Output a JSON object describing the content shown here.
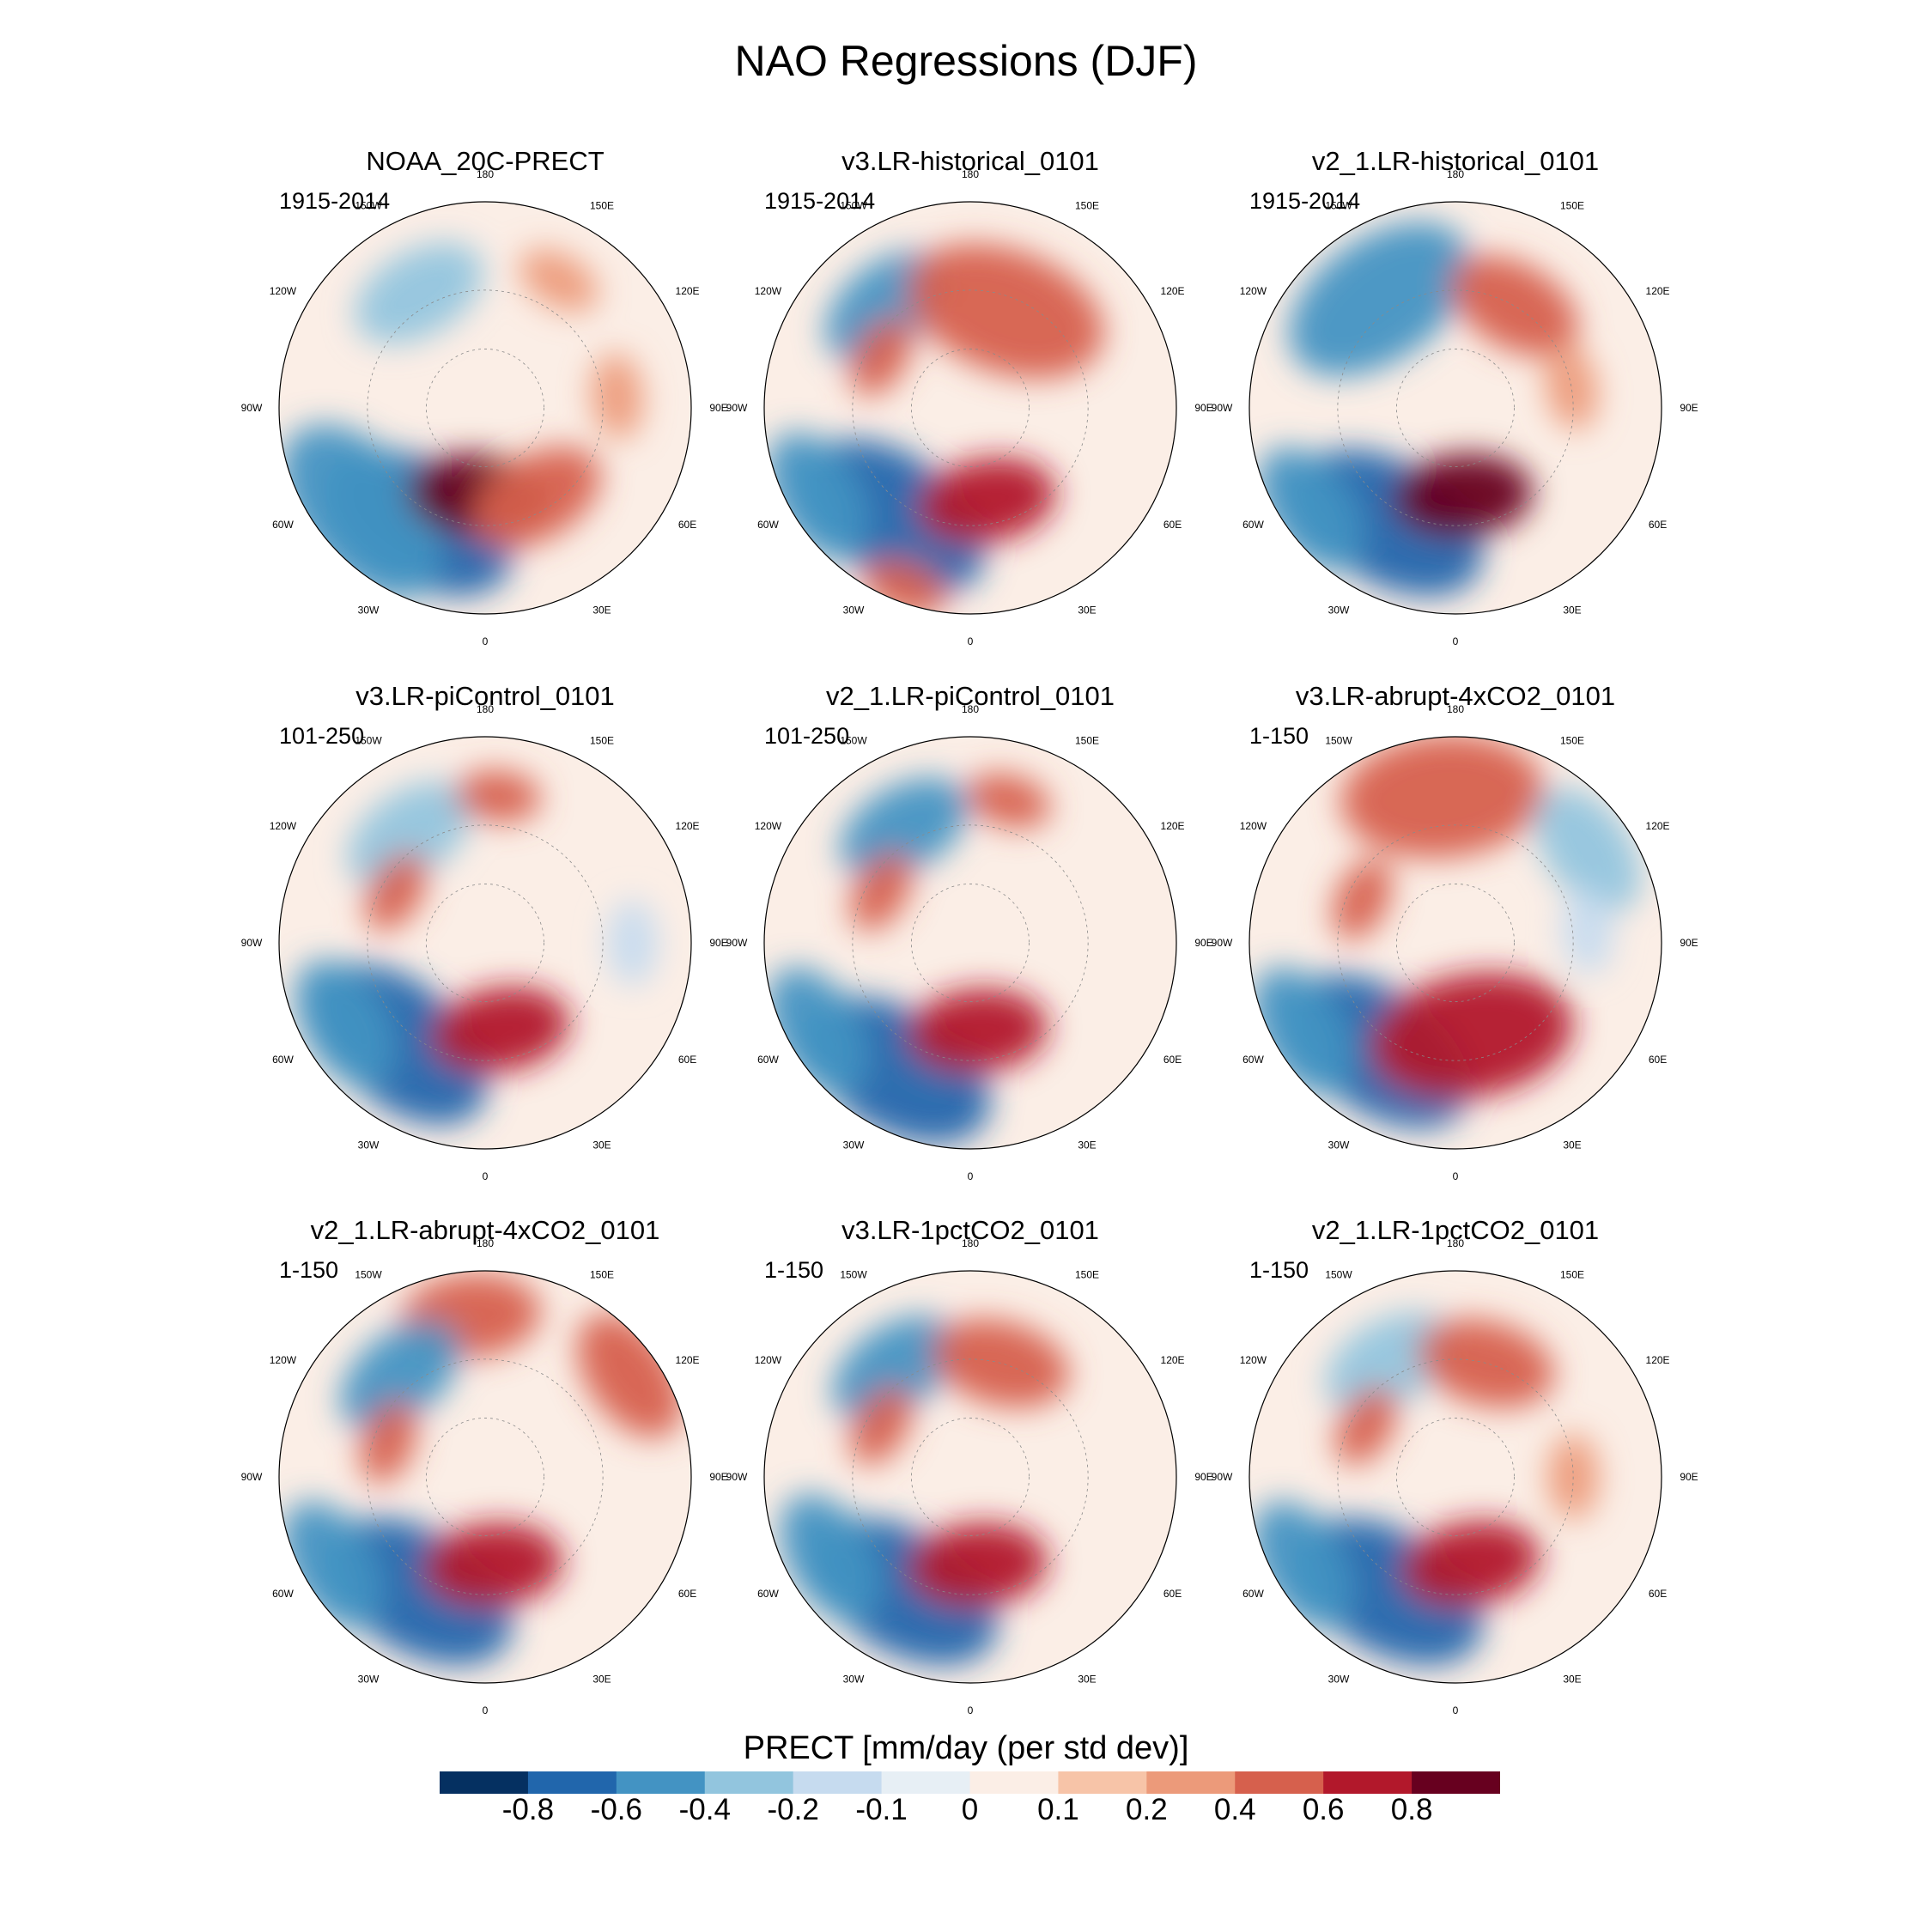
{
  "figure": {
    "title": "NAO Regressions (DJF)"
  },
  "chart_data": {
    "type": "heatmap",
    "projection": "north-polar-stereographic",
    "variable": "PRECT",
    "units_label": "PRECT [mm/day (per std dev)]",
    "longitude_labels": [
      "180",
      "150E",
      "120E",
      "90E",
      "60E",
      "30E",
      "0",
      "30W",
      "60W",
      "90W",
      "120W",
      "150W"
    ],
    "colorbar": {
      "colors": [
        "#053061",
        "#2166ac",
        "#4393c3",
        "#92c5de",
        "#c6dbef",
        "#e7eff5",
        "#fbeee6",
        "#f7c4a8",
        "#ec9a7a",
        "#d6604d",
        "#b2182b",
        "#67001f"
      ],
      "tick_labels": [
        "-0.8",
        "-0.6",
        "-0.4",
        "-0.2",
        "-0.1",
        "0",
        "0.1",
        "0.2",
        "0.4",
        "0.6",
        "0.8"
      ],
      "tick_values": [
        -0.8,
        -0.6,
        -0.4,
        -0.2,
        -0.1,
        0,
        0.1,
        0.2,
        0.4,
        0.6,
        0.8
      ]
    },
    "panels": [
      {
        "title": "NOAA_20C-PRECT",
        "period": "1915-2014",
        "features": [
          {
            "lon": -30,
            "lat": 45,
            "value": -0.8,
            "extent": "large"
          },
          {
            "lon": -50,
            "lat": 35,
            "value": -0.6,
            "extent": "large"
          },
          {
            "lon": -5,
            "lat": 60,
            "value": 0.8,
            "extent": "medium"
          },
          {
            "lon": 30,
            "lat": 55,
            "value": 0.4,
            "extent": "medium"
          },
          {
            "lon": -150,
            "lat": 45,
            "value": -0.4,
            "extent": "medium"
          },
          {
            "lon": 150,
            "lat": 40,
            "value": 0.2,
            "extent": "small"
          },
          {
            "lon": 95,
            "lat": 45,
            "value": 0.2,
            "extent": "small"
          }
        ]
      },
      {
        "title": "v3.LR-historical_0101",
        "period": "1915-2014",
        "features": [
          {
            "lon": -35,
            "lat": 45,
            "value": -0.8,
            "extent": "large"
          },
          {
            "lon": -60,
            "lat": 30,
            "value": -0.6,
            "extent": "medium"
          },
          {
            "lon": 10,
            "lat": 58,
            "value": 0.6,
            "extent": "medium"
          },
          {
            "lon": -140,
            "lat": 45,
            "value": -0.6,
            "extent": "medium"
          },
          {
            "lon": 160,
            "lat": 55,
            "value": 0.4,
            "extent": "large"
          },
          {
            "lon": -120,
            "lat": 55,
            "value": 0.4,
            "extent": "small"
          },
          {
            "lon": -20,
            "lat": 25,
            "value": 0.4,
            "extent": "small"
          }
        ]
      },
      {
        "title": "v2_1.LR-historical_0101",
        "period": "1915-2014",
        "features": [
          {
            "lon": -30,
            "lat": 45,
            "value": -0.8,
            "extent": "large"
          },
          {
            "lon": -55,
            "lat": 30,
            "value": -0.6,
            "extent": "medium"
          },
          {
            "lon": 5,
            "lat": 60,
            "value": 0.8,
            "extent": "medium"
          },
          {
            "lon": -145,
            "lat": 45,
            "value": -0.6,
            "extent": "large"
          },
          {
            "lon": 150,
            "lat": 50,
            "value": 0.4,
            "extent": "medium"
          },
          {
            "lon": 100,
            "lat": 50,
            "value": 0.2,
            "extent": "small"
          }
        ]
      },
      {
        "title": "v3.LR-piControl_0101",
        "period": "101-250",
        "features": [
          {
            "lon": -40,
            "lat": 45,
            "value": -0.8,
            "extent": "large"
          },
          {
            "lon": -60,
            "lat": 35,
            "value": -0.6,
            "extent": "medium"
          },
          {
            "lon": 10,
            "lat": 60,
            "value": 0.6,
            "extent": "medium"
          },
          {
            "lon": -145,
            "lat": 45,
            "value": -0.4,
            "extent": "medium"
          },
          {
            "lon": 175,
            "lat": 40,
            "value": 0.4,
            "extent": "small"
          },
          {
            "lon": -120,
            "lat": 55,
            "value": 0.4,
            "extent": "small"
          },
          {
            "lon": 90,
            "lat": 40,
            "value": -0.2,
            "extent": "small"
          }
        ]
      },
      {
        "title": "v2_1.LR-piControl_0101",
        "period": "101-250",
        "features": [
          {
            "lon": -30,
            "lat": 40,
            "value": -0.8,
            "extent": "large"
          },
          {
            "lon": -60,
            "lat": 30,
            "value": -0.6,
            "extent": "medium"
          },
          {
            "lon": 5,
            "lat": 60,
            "value": 0.6,
            "extent": "medium"
          },
          {
            "lon": -150,
            "lat": 45,
            "value": -0.6,
            "extent": "medium"
          },
          {
            "lon": 165,
            "lat": 40,
            "value": 0.4,
            "extent": "small"
          },
          {
            "lon": -120,
            "lat": 55,
            "value": 0.4,
            "extent": "small"
          }
        ]
      },
      {
        "title": "v3.LR-abrupt-4xCO2_0101",
        "period": "1-150",
        "features": [
          {
            "lon": -35,
            "lat": 45,
            "value": -0.8,
            "extent": "large"
          },
          {
            "lon": -60,
            "lat": 30,
            "value": -0.6,
            "extent": "medium"
          },
          {
            "lon": 10,
            "lat": 58,
            "value": 0.6,
            "extent": "large"
          },
          {
            "lon": -175,
            "lat": 40,
            "value": 0.4,
            "extent": "large"
          },
          {
            "lon": 125,
            "lat": 35,
            "value": -0.4,
            "extent": "medium"
          },
          {
            "lon": -115,
            "lat": 55,
            "value": 0.4,
            "extent": "small"
          },
          {
            "lon": 95,
            "lat": 45,
            "value": -0.2,
            "extent": "small"
          }
        ]
      },
      {
        "title": "v2_1.LR-abrupt-4xCO2_0101",
        "period": "1-150",
        "features": [
          {
            "lon": -30,
            "lat": 45,
            "value": -0.8,
            "extent": "large"
          },
          {
            "lon": -60,
            "lat": 30,
            "value": -0.6,
            "extent": "medium"
          },
          {
            "lon": 5,
            "lat": 60,
            "value": 0.6,
            "extent": "medium"
          },
          {
            "lon": -175,
            "lat": 35,
            "value": 0.4,
            "extent": "medium"
          },
          {
            "lon": -140,
            "lat": 45,
            "value": -0.6,
            "extent": "medium"
          },
          {
            "lon": 125,
            "lat": 30,
            "value": 0.4,
            "extent": "medium"
          },
          {
            "lon": -110,
            "lat": 55,
            "value": 0.4,
            "extent": "small"
          }
        ]
      },
      {
        "title": "v3.LR-1pctCO2_0101",
        "period": "1-150",
        "features": [
          {
            "lon": -30,
            "lat": 45,
            "value": -0.8,
            "extent": "large"
          },
          {
            "lon": -60,
            "lat": 35,
            "value": -0.6,
            "extent": "medium"
          },
          {
            "lon": 5,
            "lat": 60,
            "value": 0.6,
            "extent": "medium"
          },
          {
            "lon": -145,
            "lat": 45,
            "value": -0.6,
            "extent": "medium"
          },
          {
            "lon": 165,
            "lat": 50,
            "value": 0.4,
            "extent": "medium"
          },
          {
            "lon": -120,
            "lat": 55,
            "value": 0.4,
            "extent": "small"
          }
        ]
      },
      {
        "title": "v2_1.LR-1pctCO2_0101",
        "period": "1-150",
        "features": [
          {
            "lon": -30,
            "lat": 45,
            "value": -0.8,
            "extent": "large"
          },
          {
            "lon": -60,
            "lat": 30,
            "value": -0.6,
            "extent": "medium"
          },
          {
            "lon": 10,
            "lat": 60,
            "value": 0.6,
            "extent": "medium"
          },
          {
            "lon": -150,
            "lat": 45,
            "value": -0.4,
            "extent": "medium"
          },
          {
            "lon": 165,
            "lat": 50,
            "value": 0.4,
            "extent": "medium"
          },
          {
            "lon": -120,
            "lat": 55,
            "value": 0.4,
            "extent": "small"
          },
          {
            "lon": 90,
            "lat": 50,
            "value": 0.2,
            "extent": "small"
          }
        ]
      }
    ]
  }
}
